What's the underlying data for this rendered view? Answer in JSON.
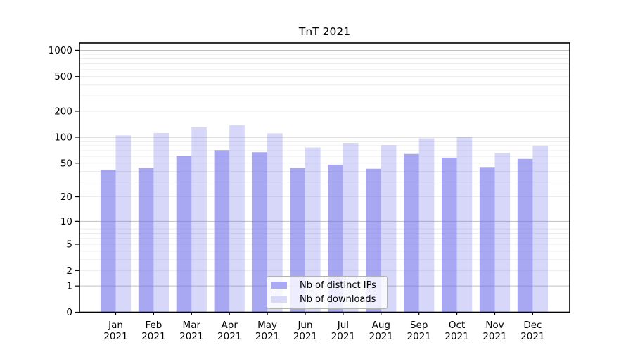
{
  "chart_data": {
    "type": "bar",
    "title": "TnT 2021",
    "x_year": "2021",
    "categories": [
      "Jan",
      "Feb",
      "Mar",
      "Apr",
      "May",
      "Jun",
      "Jul",
      "Aug",
      "Sep",
      "Oct",
      "Nov",
      "Dec"
    ],
    "series": [
      {
        "key": "distinct-ips",
        "name": "Nb of distinct IPs",
        "color": "rgba(113,113,234,0.62)",
        "values": [
          42,
          44,
          61,
          71,
          67,
          44,
          48,
          43,
          64,
          58,
          45,
          56
        ]
      },
      {
        "key": "downloads",
        "name": "Nb of downloads",
        "color": "rgba(113,113,234,0.28)",
        "values": [
          105,
          112,
          130,
          138,
          111,
          76,
          86,
          81,
          97,
          100,
          66,
          80
        ]
      }
    ],
    "y_axis": {
      "scale": "log10(1+x)",
      "tick_values": [
        0,
        1,
        2,
        5,
        10,
        20,
        50,
        100,
        200,
        500,
        1000
      ],
      "range": [
        0,
        1000
      ],
      "minor_gridlines": [
        2,
        3,
        4,
        5,
        6,
        7,
        8,
        9,
        20,
        30,
        40,
        50,
        60,
        70,
        80,
        90,
        200,
        300,
        400,
        500,
        600,
        700,
        800,
        900
      ],
      "major_gridlines": [
        1,
        10,
        100,
        1000
      ]
    },
    "legend": {
      "position": "lower-center",
      "entries": [
        "Nb of distinct IPs",
        "Nb of downloads"
      ]
    },
    "grid": "horizontal"
  },
  "colors": {
    "background": "#ffffff",
    "series1_solid": "#a9a9f4",
    "series2_solid": "#d9d9f8",
    "grid_minor": "#ececec",
    "grid_major": "#c0c0c0",
    "axis": "#000000",
    "legend_border": "#b3b3b3"
  }
}
